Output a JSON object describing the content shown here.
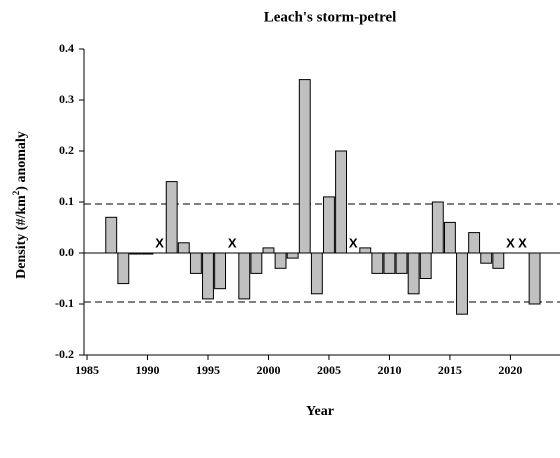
{
  "chart_data": {
    "type": "bar",
    "title": "Leach's storm-petrel",
    "xlabel": "Year",
    "ylabel": "Density (#/km",
    "ylabel_sup": "2",
    "ylabel_end": ") anomaly",
    "x": [
      1987,
      1988,
      1989,
      1990,
      1992,
      1993,
      1994,
      1995,
      1996,
      1998,
      1999,
      2000,
      2001,
      2002,
      2003,
      2004,
      2005,
      2006,
      2008,
      2009,
      2010,
      2011,
      2012,
      2013,
      2014,
      2015,
      2016,
      2017,
      2018,
      2019,
      2022
    ],
    "values": [
      0.07,
      -0.06,
      -0.002,
      -0.002,
      0.14,
      0.02,
      -0.04,
      -0.09,
      -0.07,
      -0.09,
      -0.04,
      0.01,
      -0.03,
      -0.01,
      0.34,
      -0.08,
      0.11,
      0.2,
      0.01,
      -0.04,
      -0.04,
      -0.04,
      -0.08,
      -0.05,
      0.1,
      0.06,
      -0.12,
      0.04,
      -0.02,
      -0.03,
      -0.1
    ],
    "color": "#c0c0c0",
    "missing_years": [
      1991,
      1997,
      2007,
      2020,
      2021
    ],
    "missing_marker": "X",
    "reference_lines": [
      0.096,
      -0.096
    ],
    "xlim": [
      1984.75,
      2024.1
    ],
    "xticks": [
      1985,
      1990,
      1995,
      2000,
      2005,
      2010,
      2015,
      2020
    ],
    "ylim": [
      -0.2,
      0.4
    ],
    "yticks": [
      -0.2,
      -0.1,
      {
        "value": 0,
        "label": "0.0"
      },
      0.1,
      0.2,
      0.3,
      0.4
    ]
  }
}
